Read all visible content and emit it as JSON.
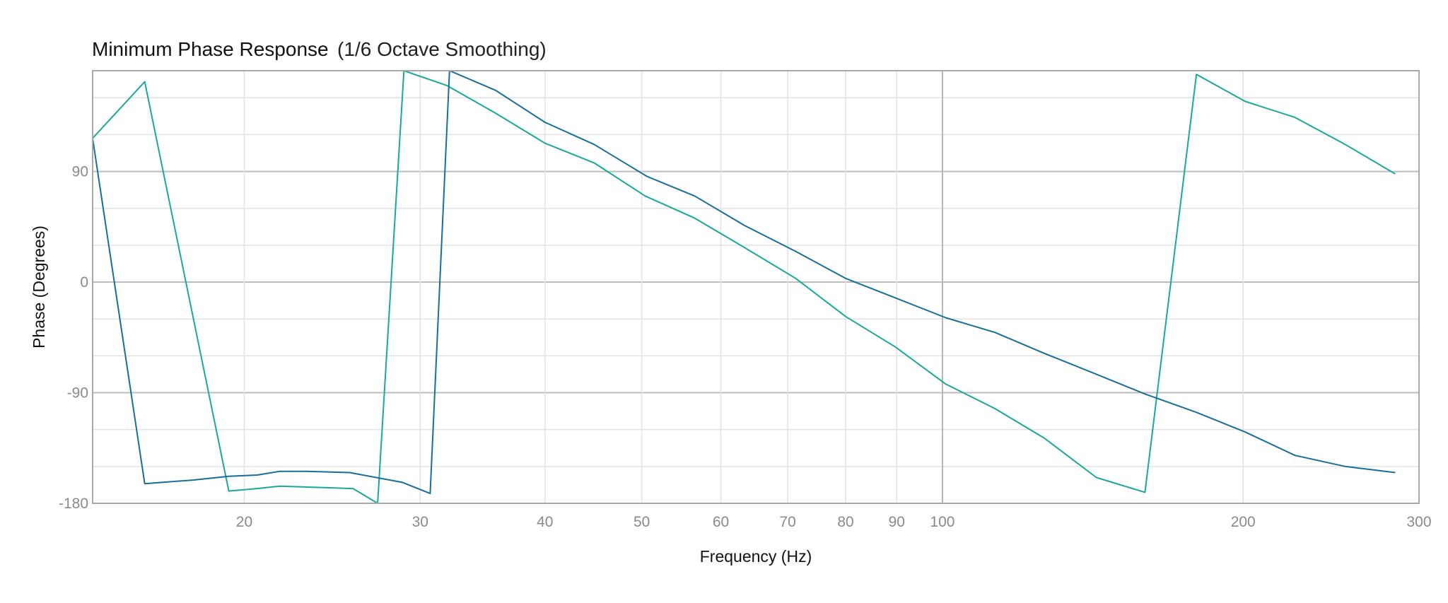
{
  "chart_data": {
    "type": "line",
    "title": "Minimum Phase Response",
    "subtitle": "(1/6 Octave Smoothing)",
    "xlabel": "Frequency (Hz)",
    "ylabel": "Phase (Degrees)",
    "x_scale": "log",
    "xlim": [
      14.1,
      300
    ],
    "ylim": [
      -180,
      172
    ],
    "x_ticks": [
      {
        "value": 20,
        "label": "20"
      },
      {
        "value": 30,
        "label": "30"
      },
      {
        "value": 40,
        "label": "40"
      },
      {
        "value": 50,
        "label": "50"
      },
      {
        "value": 60,
        "label": "60"
      },
      {
        "value": 70,
        "label": "70"
      },
      {
        "value": 80,
        "label": "80"
      },
      {
        "value": 90,
        "label": "90"
      },
      {
        "value": 100,
        "label": "100"
      },
      {
        "value": 200,
        "label": "200"
      },
      {
        "value": 300,
        "label": "300"
      }
    ],
    "y_ticks": [
      {
        "value": 90,
        "label": "90"
      },
      {
        "value": 0,
        "label": "0"
      },
      {
        "value": -90,
        "label": "-90"
      },
      {
        "value": -180,
        "label": "-180"
      }
    ],
    "y_minor_step": 30,
    "grid": true,
    "series": [
      {
        "color": "#1aa89a",
        "x": [
          14.1,
          15.9,
          19.3,
          20.6,
          21.7,
          23.6,
          25.7,
          27.2,
          28.9,
          31.9,
          35.6,
          40.0,
          44.8,
          50.4,
          56.5,
          63.4,
          71.3,
          80.0,
          89.8,
          100.8,
          112.9,
          126.5,
          142.6,
          159.5,
          179.6,
          201.0,
          225.4,
          253.0,
          284.0
        ],
        "y": [
          117,
          163,
          -170,
          -168,
          -166,
          -167,
          -168,
          -180,
          172,
          160,
          138,
          113,
          97,
          70,
          52,
          28,
          3,
          -28,
          -53,
          -83,
          -103,
          -127,
          -159,
          -171,
          169,
          147,
          134,
          112,
          88
        ]
      },
      {
        "color": "#186e99",
        "x": [
          14.1,
          15.9,
          17.8,
          19.3,
          20.6,
          21.7,
          23.1,
          25.5,
          28.8,
          30.7,
          32.1,
          35.7,
          40.0,
          44.8,
          50.6,
          56.5,
          63.4,
          71.3,
          80.0,
          89.8,
          100.8,
          112.9,
          126.5,
          142.6,
          159.5,
          179.6,
          201.0,
          225.4,
          253.0,
          284.0
        ],
        "y": [
          117,
          -164,
          -161,
          -158,
          -157,
          -154,
          -154,
          -155,
          -163,
          -172,
          172,
          156,
          130,
          112,
          86,
          70,
          46,
          25,
          3,
          -13,
          -29,
          -41,
          -58,
          -75,
          -91,
          -106,
          -122,
          -141,
          -150,
          -155
        ]
      }
    ]
  }
}
